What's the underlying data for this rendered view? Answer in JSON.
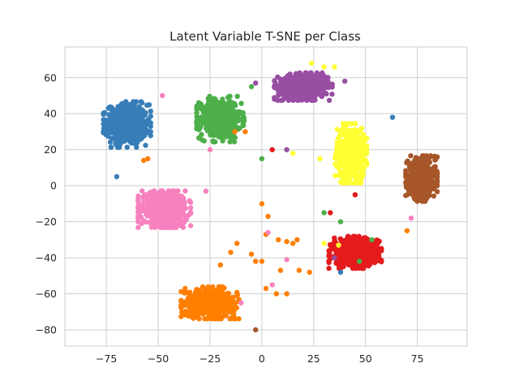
{
  "chart_data": {
    "type": "scatter",
    "title": "Latent Variable T-SNE per Class",
    "xlabel": "",
    "ylabel": "",
    "xlim": [
      -95,
      99
    ],
    "ylim": [
      -89,
      77
    ],
    "xticks": [
      -75,
      -50,
      -25,
      0,
      25,
      50,
      75
    ],
    "yticks": [
      -80,
      -60,
      -40,
      -20,
      0,
      20,
      40,
      60
    ],
    "xtick_labels": [
      "−75",
      "−50",
      "−25",
      "0",
      "25",
      "50",
      "75"
    ],
    "ytick_labels": [
      "−80",
      "−60",
      "−40",
      "−20",
      "0",
      "20",
      "40",
      "60"
    ],
    "grid": true,
    "legend": false,
    "clusters": [
      {
        "class_index": 0,
        "color": "#377eb8",
        "center": [
          -65,
          34
        ],
        "spread": [
          9,
          10
        ],
        "count": 560
      },
      {
        "class_index": 1,
        "color": "#4daf4a",
        "center": [
          -20,
          37
        ],
        "spread": [
          9,
          10
        ],
        "count": 520
      },
      {
        "class_index": 2,
        "color": "#984ea3",
        "center": [
          20,
          55
        ],
        "spread": [
          11,
          6
        ],
        "count": 560
      },
      {
        "class_index": 3,
        "color": "#ffff33",
        "center": [
          43,
          18
        ],
        "spread": [
          6,
          13
        ],
        "count": 620
      },
      {
        "class_index": 4,
        "color": "#a65628",
        "center": [
          77,
          4
        ],
        "spread": [
          6,
          10
        ],
        "count": 520
      },
      {
        "class_index": 5,
        "color": "#f781bf",
        "center": [
          -47,
          -13
        ],
        "spread": [
          10,
          8
        ],
        "count": 620
      },
      {
        "class_index": 6,
        "color": "#e41a1c",
        "center": [
          45,
          -37
        ],
        "spread": [
          10,
          7
        ],
        "count": 600
      },
      {
        "class_index": 7,
        "color": "#ff7f00",
        "center": [
          -25,
          -65
        ],
        "spread": [
          11,
          7
        ],
        "count": 600
      }
    ],
    "outliers": [
      {
        "x": 5,
        "y": 20,
        "color": "#e41a1c"
      },
      {
        "x": 0,
        "y": 15,
        "color": "#4daf4a"
      },
      {
        "x": -5,
        "y": 55,
        "color": "#4daf4a"
      },
      {
        "x": 63,
        "y": 38,
        "color": "#377eb8"
      },
      {
        "x": -70,
        "y": 5,
        "color": "#377eb8"
      },
      {
        "x": -48,
        "y": 50,
        "color": "#f781bf"
      },
      {
        "x": -57,
        "y": 14,
        "color": "#ff7f00"
      },
      {
        "x": -55,
        "y": 15,
        "color": "#ff7f00"
      },
      {
        "x": -13,
        "y": 30,
        "color": "#ff7f00"
      },
      {
        "x": -8,
        "y": 30,
        "color": "#ff7f00"
      },
      {
        "x": 0,
        "y": -10,
        "color": "#ff7f00"
      },
      {
        "x": 3,
        "y": -17,
        "color": "#ff7f00"
      },
      {
        "x": 2,
        "y": -27,
        "color": "#ff7f00"
      },
      {
        "x": 8,
        "y": -30,
        "color": "#ff7f00"
      },
      {
        "x": 12,
        "y": -31,
        "color": "#ff7f00"
      },
      {
        "x": 15,
        "y": -32,
        "color": "#ff7f00"
      },
      {
        "x": 17,
        "y": -30,
        "color": "#ff7f00"
      },
      {
        "x": 9,
        "y": -47,
        "color": "#ff7f00"
      },
      {
        "x": 0,
        "y": -42,
        "color": "#ff7f00"
      },
      {
        "x": -5,
        "y": -38,
        "color": "#ff7f00"
      },
      {
        "x": -12,
        "y": -32,
        "color": "#ff7f00"
      },
      {
        "x": -15,
        "y": -37,
        "color": "#ff7f00"
      },
      {
        "x": -20,
        "y": -44,
        "color": "#ff7f00"
      },
      {
        "x": 2,
        "y": -57,
        "color": "#ff7f00"
      },
      {
        "x": 7,
        "y": -60,
        "color": "#ff7f00"
      },
      {
        "x": 12,
        "y": -60,
        "color": "#ff7f00"
      },
      {
        "x": 18,
        "y": -47,
        "color": "#ff7f00"
      },
      {
        "x": 23,
        "y": -48,
        "color": "#ff7f00"
      },
      {
        "x": -3,
        "y": -42,
        "color": "#ff7f00"
      },
      {
        "x": -37,
        "y": -57,
        "color": "#ff7f00"
      },
      {
        "x": 12,
        "y": -41,
        "color": "#f781bf"
      },
      {
        "x": 3,
        "y": -26,
        "color": "#f781bf"
      },
      {
        "x": -27,
        "y": -3,
        "color": "#f781bf"
      },
      {
        "x": -25,
        "y": 20,
        "color": "#f781bf"
      },
      {
        "x": 5,
        "y": -55,
        "color": "#f781bf"
      },
      {
        "x": -3,
        "y": 57,
        "color": "#984ea3"
      },
      {
        "x": 40,
        "y": 58,
        "color": "#984ea3"
      },
      {
        "x": 35,
        "y": -40,
        "color": "#984ea3"
      },
      {
        "x": 12,
        "y": 20,
        "color": "#984ea3"
      },
      {
        "x": 15,
        "y": 18,
        "color": "#ffff33"
      },
      {
        "x": 24,
        "y": 68,
        "color": "#ffff33"
      },
      {
        "x": 30,
        "y": 66,
        "color": "#ffff33"
      },
      {
        "x": 35,
        "y": 66,
        "color": "#ffff33"
      },
      {
        "x": 28,
        "y": 15,
        "color": "#ffff33"
      },
      {
        "x": 37,
        "y": -33,
        "color": "#ffff33"
      },
      {
        "x": 30,
        "y": -32,
        "color": "#ffff33"
      },
      {
        "x": 33,
        "y": -15,
        "color": "#e41a1c"
      },
      {
        "x": 38,
        "y": -20,
        "color": "#4daf4a"
      },
      {
        "x": 53,
        "y": -30,
        "color": "#4daf4a"
      },
      {
        "x": 30,
        "y": -15,
        "color": "#4daf4a"
      },
      {
        "x": 47,
        "y": -42,
        "color": "#4daf4a"
      },
      {
        "x": -3,
        "y": -80,
        "color": "#a65628"
      },
      {
        "x": -10,
        "y": -65,
        "color": "#f781bf"
      },
      {
        "x": 45,
        "y": -5,
        "color": "#e41a1c"
      },
      {
        "x": 38,
        "y": -48,
        "color": "#377eb8"
      },
      {
        "x": 70,
        "y": -25,
        "color": "#ff7f00"
      },
      {
        "x": 72,
        "y": -18,
        "color": "#f781bf"
      }
    ]
  }
}
